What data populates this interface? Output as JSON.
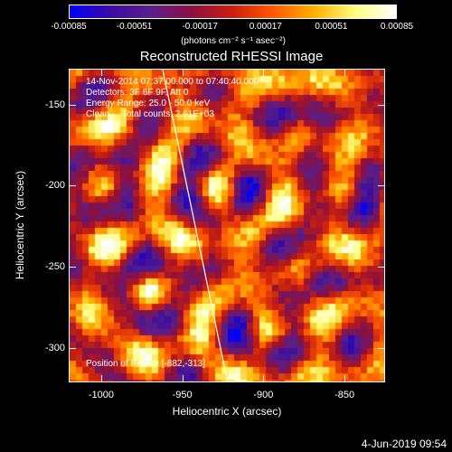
{
  "colorbar": {
    "ticks": [
      "-0.00085",
      "-0.00051",
      "-0.00017",
      "0.00017",
      "0.00051",
      "0.00085"
    ],
    "unit_label": "(photons cm⁻² s⁻¹ asec⁻²)",
    "range": [
      -0.00085,
      0.00085
    ],
    "colors": [
      "#0000ff",
      "#3a0ca0",
      "#5a1f8a",
      "#8b1040",
      "#c82010",
      "#ff5a00",
      "#ffb000",
      "#ffff80",
      "#ffffff"
    ]
  },
  "chart_data": {
    "type": "heatmap",
    "title": "Reconstructed RHESSI Image",
    "xlabel": "Heliocentric X (arcsec)",
    "ylabel": "Heliocentric Y (arcsec)",
    "xlim": [
      -1020,
      -825
    ],
    "ylim": [
      -321,
      -128
    ],
    "x_ticks": [
      "-1000",
      "-950",
      "-900",
      "-850"
    ],
    "y_ticks": [
      "-150",
      "-200",
      "-250",
      "-300"
    ],
    "x_tick_values": [
      -1000,
      -950,
      -900,
      -850
    ],
    "y_tick_values": [
      -150,
      -200,
      -250,
      -300
    ],
    "annotations": [
      "14-Nov-2014 07:37:00.000 to 07:40:40.000",
      "Detectors: 3F 6F 9F, Att 0",
      "Energy Range: 25.0 - 50.0 keV",
      "Clean     Total counts: 2.61E+03"
    ],
    "peak_label": "Position of Peak = [-882,-313]",
    "peak": [
      -882,
      -313
    ],
    "ring_centers": [
      [
        -880,
        -250
      ],
      [
        -970,
        -265
      ],
      [
        -880,
        -165
      ],
      [
        -850,
        -205
      ],
      [
        -1000,
        -200
      ],
      [
        -930,
        -200
      ],
      [
        -900,
        -290
      ]
    ],
    "grid": false
  },
  "footer": {
    "date": "4-Jun-2019 09:54"
  }
}
